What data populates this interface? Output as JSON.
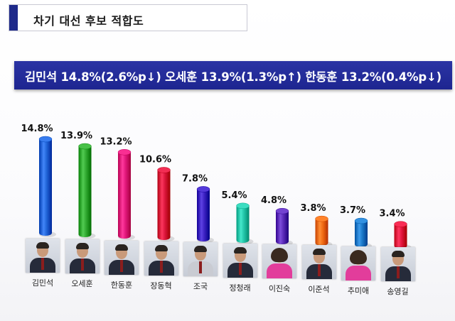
{
  "header": {
    "title": "차기 대선 후보 적합도"
  },
  "banner": {
    "text": "김민석 14.8%(2.6%p↓) 오세훈 13.9%(1.3%p↑) 한동훈 13.2%(0.4%p↓)"
  },
  "chart_data": {
    "type": "bar",
    "categories": [
      "김민석",
      "오세훈",
      "한동훈",
      "장동혁",
      "조국",
      "정청래",
      "이진숙",
      "이준석",
      "추미애",
      "송영길"
    ],
    "values": [
      14.8,
      13.9,
      13.2,
      10.6,
      7.8,
      5.4,
      4.8,
      3.8,
      3.7,
      3.4
    ],
    "value_labels": [
      "14.8%",
      "13.9%",
      "13.2%",
      "10.6%",
      "7.8%",
      "5.4%",
      "4.8%",
      "3.8%",
      "3.7%",
      "3.4%"
    ],
    "colors": [
      "#1f63d6",
      "#2fa82f",
      "#e0167a",
      "#d9143a",
      "#3a1fc0",
      "#22c4a8",
      "#5a2ab8",
      "#f06a12",
      "#1a78c8",
      "#e0143c"
    ],
    "title": "",
    "xlabel": "",
    "ylabel": "",
    "ylim": [
      0,
      15
    ],
    "grid": false,
    "legend": "none",
    "style": "3d-cylinder"
  }
}
